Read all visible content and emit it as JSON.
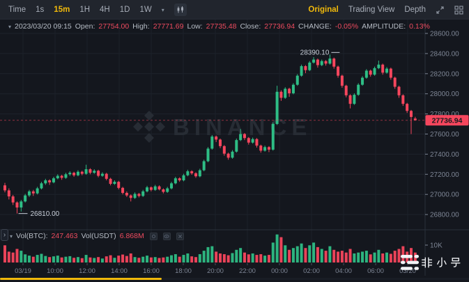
{
  "toolbar": {
    "intervals": [
      "Time",
      "1s",
      "15m",
      "1H",
      "4H",
      "1D",
      "1W"
    ],
    "active_interval": "15m",
    "views": [
      "Original",
      "Trading View",
      "Depth"
    ],
    "active_view": "Original"
  },
  "ohlc_bar": {
    "datetime": "2023/03/20 09:15",
    "open_label": "Open:",
    "open": "27754.00",
    "high_label": "High:",
    "high": "27771.69",
    "low_label": "Low:",
    "low": "27735.48",
    "close_label": "Close:",
    "close": "27736.94",
    "change_label": "CHANGE:",
    "change": "-0.05%",
    "amplitude_label": "AMPLITUDE:",
    "amplitude": "0.13%"
  },
  "volume_bar": {
    "btc_label": "Vol(BTC):",
    "btc": "247.463",
    "usdt_label": "Vol(USDT)",
    "usdt": "6.868M",
    "scale_label": "10K"
  },
  "price_axis": {
    "labels": [
      "28600.00",
      "28400.00",
      "28200.00",
      "28000.00",
      "27800.00",
      "27600.00",
      "27400.00",
      "27200.00",
      "27000.00",
      "26800.00"
    ],
    "last_price": "27736.94"
  },
  "time_axis": {
    "labels": [
      "03/19",
      "10:00",
      "12:00",
      "14:00",
      "16:00",
      "18:00",
      "20:00",
      "22:00",
      "00:00",
      "02:00",
      "04:00",
      "06:00",
      "03/20"
    ]
  },
  "annotations": {
    "high": "28390.10",
    "low": "26810.00"
  },
  "watermark": "BINANCE",
  "brand": "非小号",
  "colors": {
    "up": "#2ebd85",
    "down": "#f6465d",
    "accent": "#f0b90b",
    "value_red": "#ee4b5f",
    "axis_text": "#7d8594"
  },
  "chart_data": {
    "type": "candlestick+volume",
    "interval": "15m",
    "price_gridlines": [
      28600,
      28400,
      28200,
      28000,
      27800,
      27600,
      27400,
      27200,
      27000,
      26800
    ],
    "price_range": [
      26800,
      28600
    ],
    "volume_scale_label": "10K",
    "last_price": 27736.94,
    "high_annotation": 28390.1,
    "low_annotation": 26810.0,
    "columns": [
      "open",
      "high",
      "low",
      "close",
      "volume_k"
    ],
    "candles": [
      [
        27090,
        27115,
        27020,
        27040,
        9.5
      ],
      [
        27040,
        27060,
        26950,
        26980,
        6.0
      ],
      [
        26980,
        26995,
        26895,
        26920,
        5.5
      ],
      [
        26920,
        26930,
        26810,
        26870,
        7.5
      ],
      [
        26870,
        26945,
        26830,
        26930,
        6.5
      ],
      [
        26930,
        27005,
        26920,
        26990,
        4.5
      ],
      [
        26990,
        27045,
        26975,
        27030,
        3.8
      ],
      [
        27030,
        27045,
        26985,
        27010,
        3.2
      ],
      [
        27010,
        27075,
        27000,
        27060,
        4.2
      ],
      [
        27060,
        27125,
        27050,
        27110,
        4.8
      ],
      [
        27110,
        27155,
        27095,
        27140,
        3.6
      ],
      [
        27140,
        27150,
        27095,
        27120,
        3.0
      ],
      [
        27120,
        27175,
        27110,
        27160,
        3.4
      ],
      [
        27160,
        27200,
        27150,
        27185,
        3.8
      ],
      [
        27185,
        27195,
        27145,
        27165,
        2.8
      ],
      [
        27165,
        27215,
        27155,
        27200,
        3.2
      ],
      [
        27200,
        27230,
        27185,
        27215,
        3.5
      ],
      [
        27215,
        27225,
        27175,
        27190,
        2.6
      ],
      [
        27190,
        27240,
        27180,
        27225,
        3.0
      ],
      [
        27225,
        27235,
        27190,
        27205,
        2.4
      ],
      [
        27205,
        27295,
        27195,
        27250,
        4.2
      ],
      [
        27250,
        27260,
        27200,
        27215,
        2.8
      ],
      [
        27215,
        27250,
        27205,
        27235,
        2.5
      ],
      [
        27235,
        27245,
        27170,
        27185,
        3.0
      ],
      [
        27185,
        27220,
        27175,
        27205,
        2.2
      ],
      [
        27205,
        27215,
        27140,
        27155,
        3.4
      ],
      [
        27155,
        27165,
        27090,
        27105,
        4.0
      ],
      [
        27105,
        27140,
        27095,
        27125,
        2.6
      ],
      [
        27125,
        27135,
        27050,
        27065,
        3.8
      ],
      [
        27065,
        27075,
        27000,
        27015,
        4.4
      ],
      [
        27015,
        27030,
        26975,
        26990,
        3.6
      ],
      [
        26990,
        27000,
        26930,
        26965,
        5.0
      ],
      [
        26965,
        27020,
        26955,
        27005,
        3.0
      ],
      [
        27005,
        27015,
        26970,
        26985,
        2.6
      ],
      [
        26985,
        27045,
        26975,
        27030,
        3.2
      ],
      [
        27030,
        27085,
        27020,
        27070,
        3.8
      ],
      [
        27070,
        27080,
        27030,
        27045,
        2.8
      ],
      [
        27045,
        27095,
        27035,
        27080,
        3.0
      ],
      [
        27080,
        27090,
        27040,
        27050,
        2.5
      ],
      [
        27050,
        27060,
        27010,
        27025,
        2.8
      ],
      [
        27025,
        27075,
        27015,
        27060,
        3.2
      ],
      [
        27060,
        27125,
        27050,
        27110,
        4.0
      ],
      [
        27110,
        27175,
        27100,
        27160,
        4.6
      ],
      [
        27160,
        27170,
        27125,
        27140,
        3.2
      ],
      [
        27140,
        27205,
        27130,
        27190,
        4.2
      ],
      [
        27190,
        27245,
        27180,
        27230,
        5.0
      ],
      [
        27230,
        27240,
        27195,
        27210,
        3.4
      ],
      [
        27210,
        27220,
        27165,
        27180,
        3.0
      ],
      [
        27180,
        27255,
        27170,
        27240,
        4.6
      ],
      [
        27240,
        27345,
        27230,
        27330,
        6.5
      ],
      [
        27330,
        27470,
        27320,
        27455,
        8.5
      ],
      [
        27455,
        27590,
        27445,
        27575,
        9.0
      ],
      [
        27575,
        27585,
        27520,
        27545,
        6.0
      ],
      [
        27545,
        27555,
        27460,
        27480,
        5.0
      ],
      [
        27480,
        27490,
        27385,
        27405,
        4.6
      ],
      [
        27405,
        27415,
        27345,
        27365,
        4.0
      ],
      [
        27365,
        27440,
        27355,
        27425,
        5.2
      ],
      [
        27425,
        27555,
        27415,
        27540,
        7.0
      ],
      [
        27540,
        27650,
        27530,
        27600,
        8.0
      ],
      [
        27600,
        27610,
        27540,
        27560,
        5.5
      ],
      [
        27560,
        27570,
        27495,
        27515,
        4.5
      ],
      [
        27515,
        27565,
        27505,
        27550,
        5.0
      ],
      [
        27550,
        27560,
        27465,
        27485,
        4.2
      ],
      [
        27485,
        27495,
        27415,
        27435,
        4.6
      ],
      [
        27435,
        27485,
        27425,
        27470,
        3.8
      ],
      [
        27470,
        27480,
        27420,
        27445,
        4.2
      ],
      [
        27445,
        27715,
        27435,
        27700,
        11.0
      ],
      [
        27700,
        28080,
        27690,
        28020,
        15.5
      ],
      [
        28020,
        28035,
        27930,
        27960,
        14.0
      ],
      [
        27960,
        28065,
        27950,
        28050,
        9.5
      ],
      [
        28050,
        28060,
        27970,
        28005,
        7.0
      ],
      [
        28005,
        28105,
        27995,
        28090,
        8.0
      ],
      [
        28090,
        28195,
        28080,
        28180,
        9.0
      ],
      [
        28180,
        28290,
        28170,
        28275,
        10.5
      ],
      [
        28275,
        28285,
        28205,
        28235,
        8.0
      ],
      [
        28235,
        28325,
        28225,
        28310,
        9.5
      ],
      [
        28310,
        28365,
        28300,
        28340,
        11.0
      ],
      [
        28340,
        28350,
        28260,
        28285,
        8.5
      ],
      [
        28285,
        28340,
        28275,
        28325,
        7.5
      ],
      [
        28325,
        28335,
        28280,
        28300,
        6.5
      ],
      [
        28300,
        28390.1,
        28290,
        28350,
        9.0
      ],
      [
        28350,
        28360,
        28250,
        28270,
        7.0
      ],
      [
        28270,
        28280,
        28160,
        28180,
        6.0
      ],
      [
        28180,
        28190,
        28060,
        28080,
        6.5
      ],
      [
        28080,
        28090,
        27965,
        27985,
        5.5
      ],
      [
        27985,
        27995,
        27855,
        27900,
        7.5
      ],
      [
        27900,
        28005,
        27890,
        27990,
        5.0
      ],
      [
        27990,
        28105,
        27980,
        28090,
        5.5
      ],
      [
        28090,
        28175,
        28080,
        28160,
        6.0
      ],
      [
        28160,
        28245,
        28150,
        28230,
        6.5
      ],
      [
        28230,
        28240,
        28170,
        28190,
        4.5
      ],
      [
        28190,
        28270,
        28180,
        28255,
        5.5
      ],
      [
        28255,
        28330,
        28245,
        28290,
        7.0
      ],
      [
        28290,
        28300,
        28190,
        28210,
        5.0
      ],
      [
        28210,
        28265,
        28200,
        28250,
        5.5
      ],
      [
        28250,
        28260,
        28140,
        28160,
        4.8
      ],
      [
        28160,
        28170,
        28050,
        28070,
        6.5
      ],
      [
        28070,
        28080,
        27960,
        27985,
        7.5
      ],
      [
        27985,
        27995,
        27880,
        27900,
        9.0
      ],
      [
        27900,
        27910,
        27810,
        27830,
        6.0
      ],
      [
        27830,
        27840,
        27600,
        27770,
        8.0
      ],
      [
        27754,
        27771.69,
        27735.48,
        27736.94,
        5.5
      ]
    ]
  }
}
